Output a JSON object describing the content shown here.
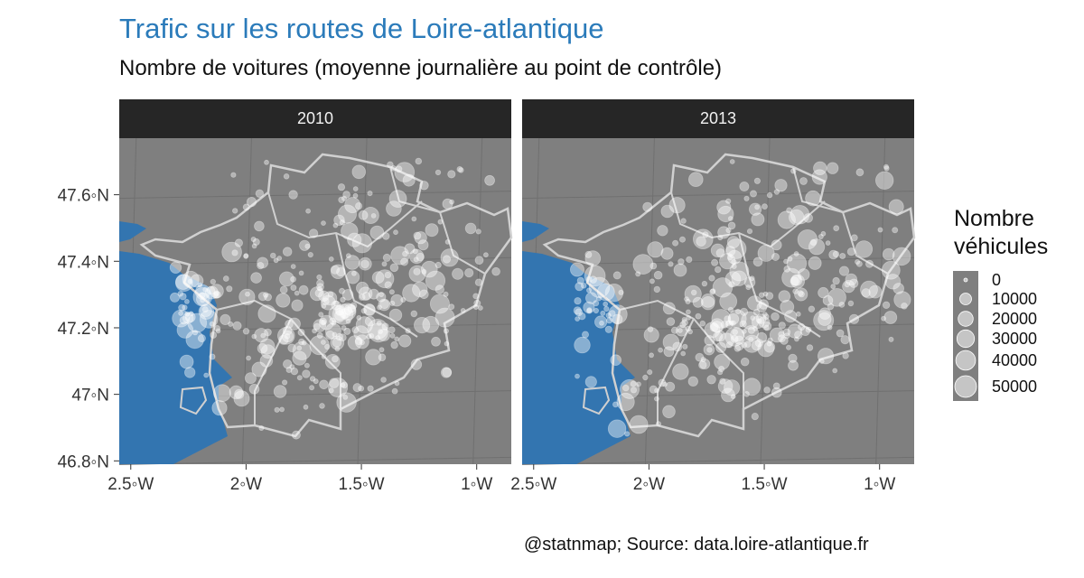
{
  "title": "Trafic sur les routes de Loire-atlantique",
  "subtitle": "Nombre de voitures (moyenne journalière au point de contrôle)",
  "caption": "@statnmap; Source: data.loire-atlantique.fr",
  "colors": {
    "title": "#2b7bba",
    "panel_bg": "#7f7f7f",
    "sea": "#3375b0",
    "strip_bg": "#262626",
    "boundary": "#d0d0d0",
    "points": "#ffffff"
  },
  "map": {
    "lon_range": [
      -2.55,
      -0.85
    ],
    "lat_range": [
      46.79,
      47.77
    ],
    "x_ticks": [
      {
        "value": -2.5,
        "label": "2.5◦W"
      },
      {
        "value": -2.0,
        "label": "2◦W"
      },
      {
        "value": -1.5,
        "label": "1.5◦W"
      },
      {
        "value": -1.0,
        "label": "1◦W"
      }
    ],
    "y_ticks": [
      {
        "value": 47.6,
        "label": "47.6◦N"
      },
      {
        "value": 47.4,
        "label": "47.4◦N"
      },
      {
        "value": 47.2,
        "label": "47.2◦N"
      },
      {
        "value": 47.0,
        "label": "47◦N"
      },
      {
        "value": 46.8,
        "label": "46.8◦N"
      }
    ],
    "graticule": "on",
    "point_color": "white, semi-transparent"
  },
  "panels": [
    {
      "label": "2010"
    },
    {
      "label": "2013"
    }
  ],
  "legend": {
    "title_line1": "Nombre",
    "title_line2": "véhicules",
    "placement": "right",
    "entries": [
      {
        "value": 0,
        "label": "0"
      },
      {
        "value": 10000,
        "label": "10000"
      },
      {
        "value": 20000,
        "label": "20000"
      },
      {
        "value": 30000,
        "label": "30000"
      },
      {
        "value": 40000,
        "label": "40000"
      },
      {
        "value": 50000,
        "label": "50000"
      }
    ]
  }
}
